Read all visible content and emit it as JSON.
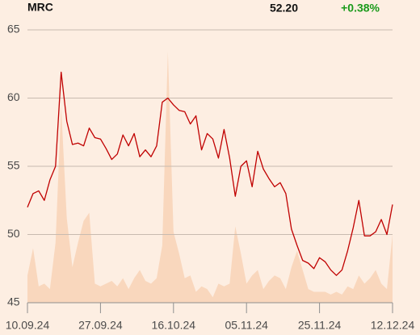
{
  "chart_data": {
    "type": "line",
    "ticker": "MRC",
    "price": "52.20",
    "change": "+0.38%",
    "categories": [
      "10.09.24",
      null,
      null,
      null,
      null,
      null,
      null,
      null,
      null,
      null,
      null,
      null,
      null,
      "27.09.24",
      null,
      null,
      null,
      null,
      null,
      null,
      null,
      null,
      null,
      null,
      null,
      null,
      "16.10.24",
      null,
      null,
      null,
      null,
      null,
      null,
      null,
      null,
      null,
      null,
      null,
      null,
      "05.11.24",
      null,
      null,
      null,
      null,
      null,
      null,
      null,
      null,
      null,
      null,
      null,
      null,
      "25.11.24",
      null,
      null,
      null,
      null,
      null,
      null,
      null,
      null,
      null,
      null,
      null,
      null,
      "12.12.24"
    ],
    "series": [
      {
        "color": "#c00000",
        "values": [
          52.0,
          53.0,
          53.2,
          52.5,
          54.0,
          55.0,
          61.9,
          58.3,
          56.6,
          56.7,
          56.5,
          57.8,
          57.1,
          57.0,
          56.3,
          55.5,
          55.9,
          57.3,
          56.5,
          57.4,
          55.7,
          56.2,
          55.7,
          56.5,
          59.7,
          60.0,
          59.5,
          59.1,
          59.0,
          58.1,
          58.7,
          56.2,
          57.4,
          57.0,
          55.6,
          57.7,
          55.6,
          52.8,
          55.0,
          55.4,
          53.5,
          56.1,
          54.8,
          54.1,
          53.5,
          53.8,
          53.0,
          50.4,
          49.2,
          48.1,
          47.9,
          47.5,
          48.3,
          48.0,
          47.4,
          47.0,
          47.4,
          48.8,
          50.5,
          52.5,
          49.9,
          49.9,
          50.2,
          51.1,
          50.0,
          52.2
        ]
      },
      {
        "color": "#f9d7bd",
        "axis": "y2",
        "values": [
          10,
          20,
          6,
          7,
          5,
          22,
          72,
          31,
          13,
          22,
          30,
          33,
          7,
          6,
          7,
          8,
          6,
          9,
          5,
          9,
          12,
          8,
          7,
          9,
          21,
          92,
          26,
          18,
          9,
          10,
          4,
          6,
          5,
          2,
          7,
          6,
          7,
          28,
          18,
          7,
          10,
          12,
          5,
          8,
          10,
          9,
          5,
          13,
          19,
          12,
          5,
          4,
          4,
          4,
          3,
          4,
          3,
          6,
          5,
          10,
          7,
          9,
          12,
          7,
          5,
          25
        ]
      }
    ],
    "ylim": [
      45,
      65
    ],
    "yticks": [
      45,
      50,
      55,
      60,
      65
    ],
    "y2lim": [
      0,
      100
    ],
    "grid": true
  }
}
